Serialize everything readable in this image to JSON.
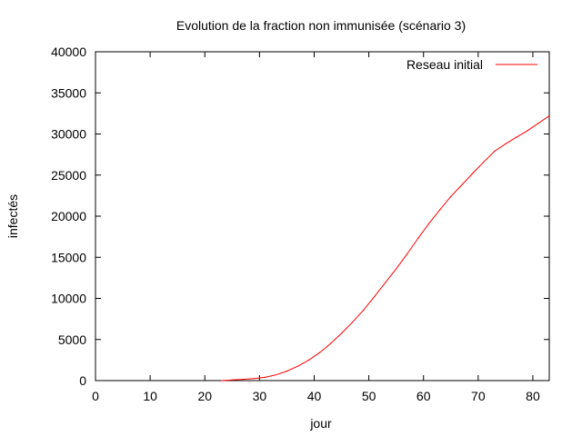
{
  "chart_data": {
    "type": "line",
    "title": "Evolution de la fraction non immunisée (scénario 3)",
    "xlabel": "jour",
    "ylabel": "infectés",
    "xlim": [
      0,
      83
    ],
    "ylim": [
      0,
      40000
    ],
    "xticks": [
      0,
      10,
      20,
      30,
      40,
      50,
      60,
      70,
      80
    ],
    "yticks": [
      0,
      5000,
      10000,
      15000,
      20000,
      25000,
      30000,
      35000,
      40000
    ],
    "grid": false,
    "legend_position": "top-right",
    "series": [
      {
        "name": "Reseau initial",
        "color": "#ff0000",
        "x": [
          23,
          25,
          27,
          29,
          31,
          33,
          35,
          37,
          39,
          41,
          43,
          45,
          47,
          49,
          51,
          53,
          55,
          57,
          59,
          61,
          63,
          65,
          67,
          69,
          71,
          73,
          75,
          77,
          79,
          81,
          83
        ],
        "y": [
          0,
          80,
          150,
          250,
          400,
          700,
          1150,
          1750,
          2500,
          3400,
          4500,
          5750,
          7100,
          8550,
          10200,
          11900,
          13600,
          15400,
          17300,
          19100,
          20800,
          22400,
          23800,
          25200,
          26600,
          27900,
          28800,
          29600,
          30400,
          31300,
          32200
        ]
      }
    ]
  }
}
